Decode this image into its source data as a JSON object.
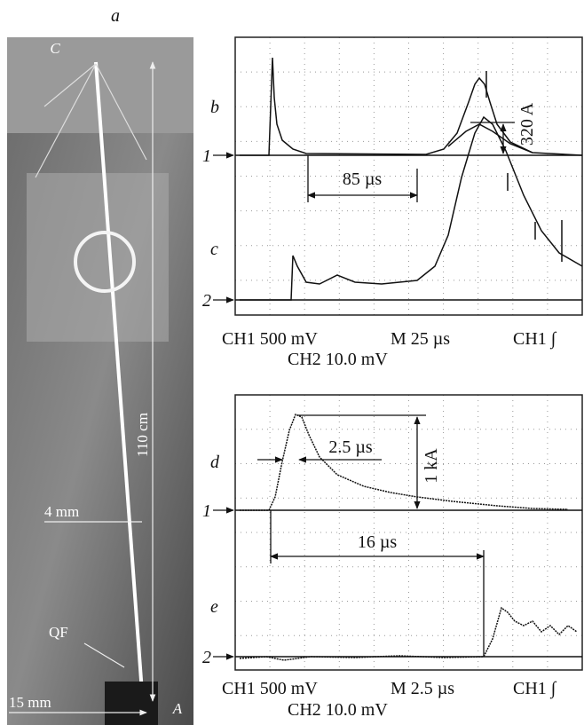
{
  "photo": {
    "label": "a",
    "top_electrode": "C",
    "length": "110 cm",
    "width": "4 mm",
    "fuse": "QF",
    "gap": "15 mm",
    "bottom_electrode": "A"
  },
  "scope_top": {
    "trace_labels": [
      "b",
      "c"
    ],
    "channel_markers": [
      "1",
      "2"
    ],
    "annotations": [
      "85 µs",
      "320 A"
    ],
    "settings": {
      "ch1": "CH1 500 mV",
      "timebase": "M 25 µs",
      "trigger": "CH1 ∫",
      "ch2": "CH2 10.0 mV"
    }
  },
  "scope_bottom": {
    "trace_labels": [
      "d",
      "e"
    ],
    "channel_markers": [
      "1",
      "2"
    ],
    "annotations": [
      "2.5 µs",
      "1 kA",
      "16 µs"
    ],
    "settings": {
      "ch1": "CH1 500 mV",
      "timebase": "M 2.5 µs",
      "trigger": "CH1 ∫",
      "ch2": "CH2 10.0 mV"
    }
  }
}
